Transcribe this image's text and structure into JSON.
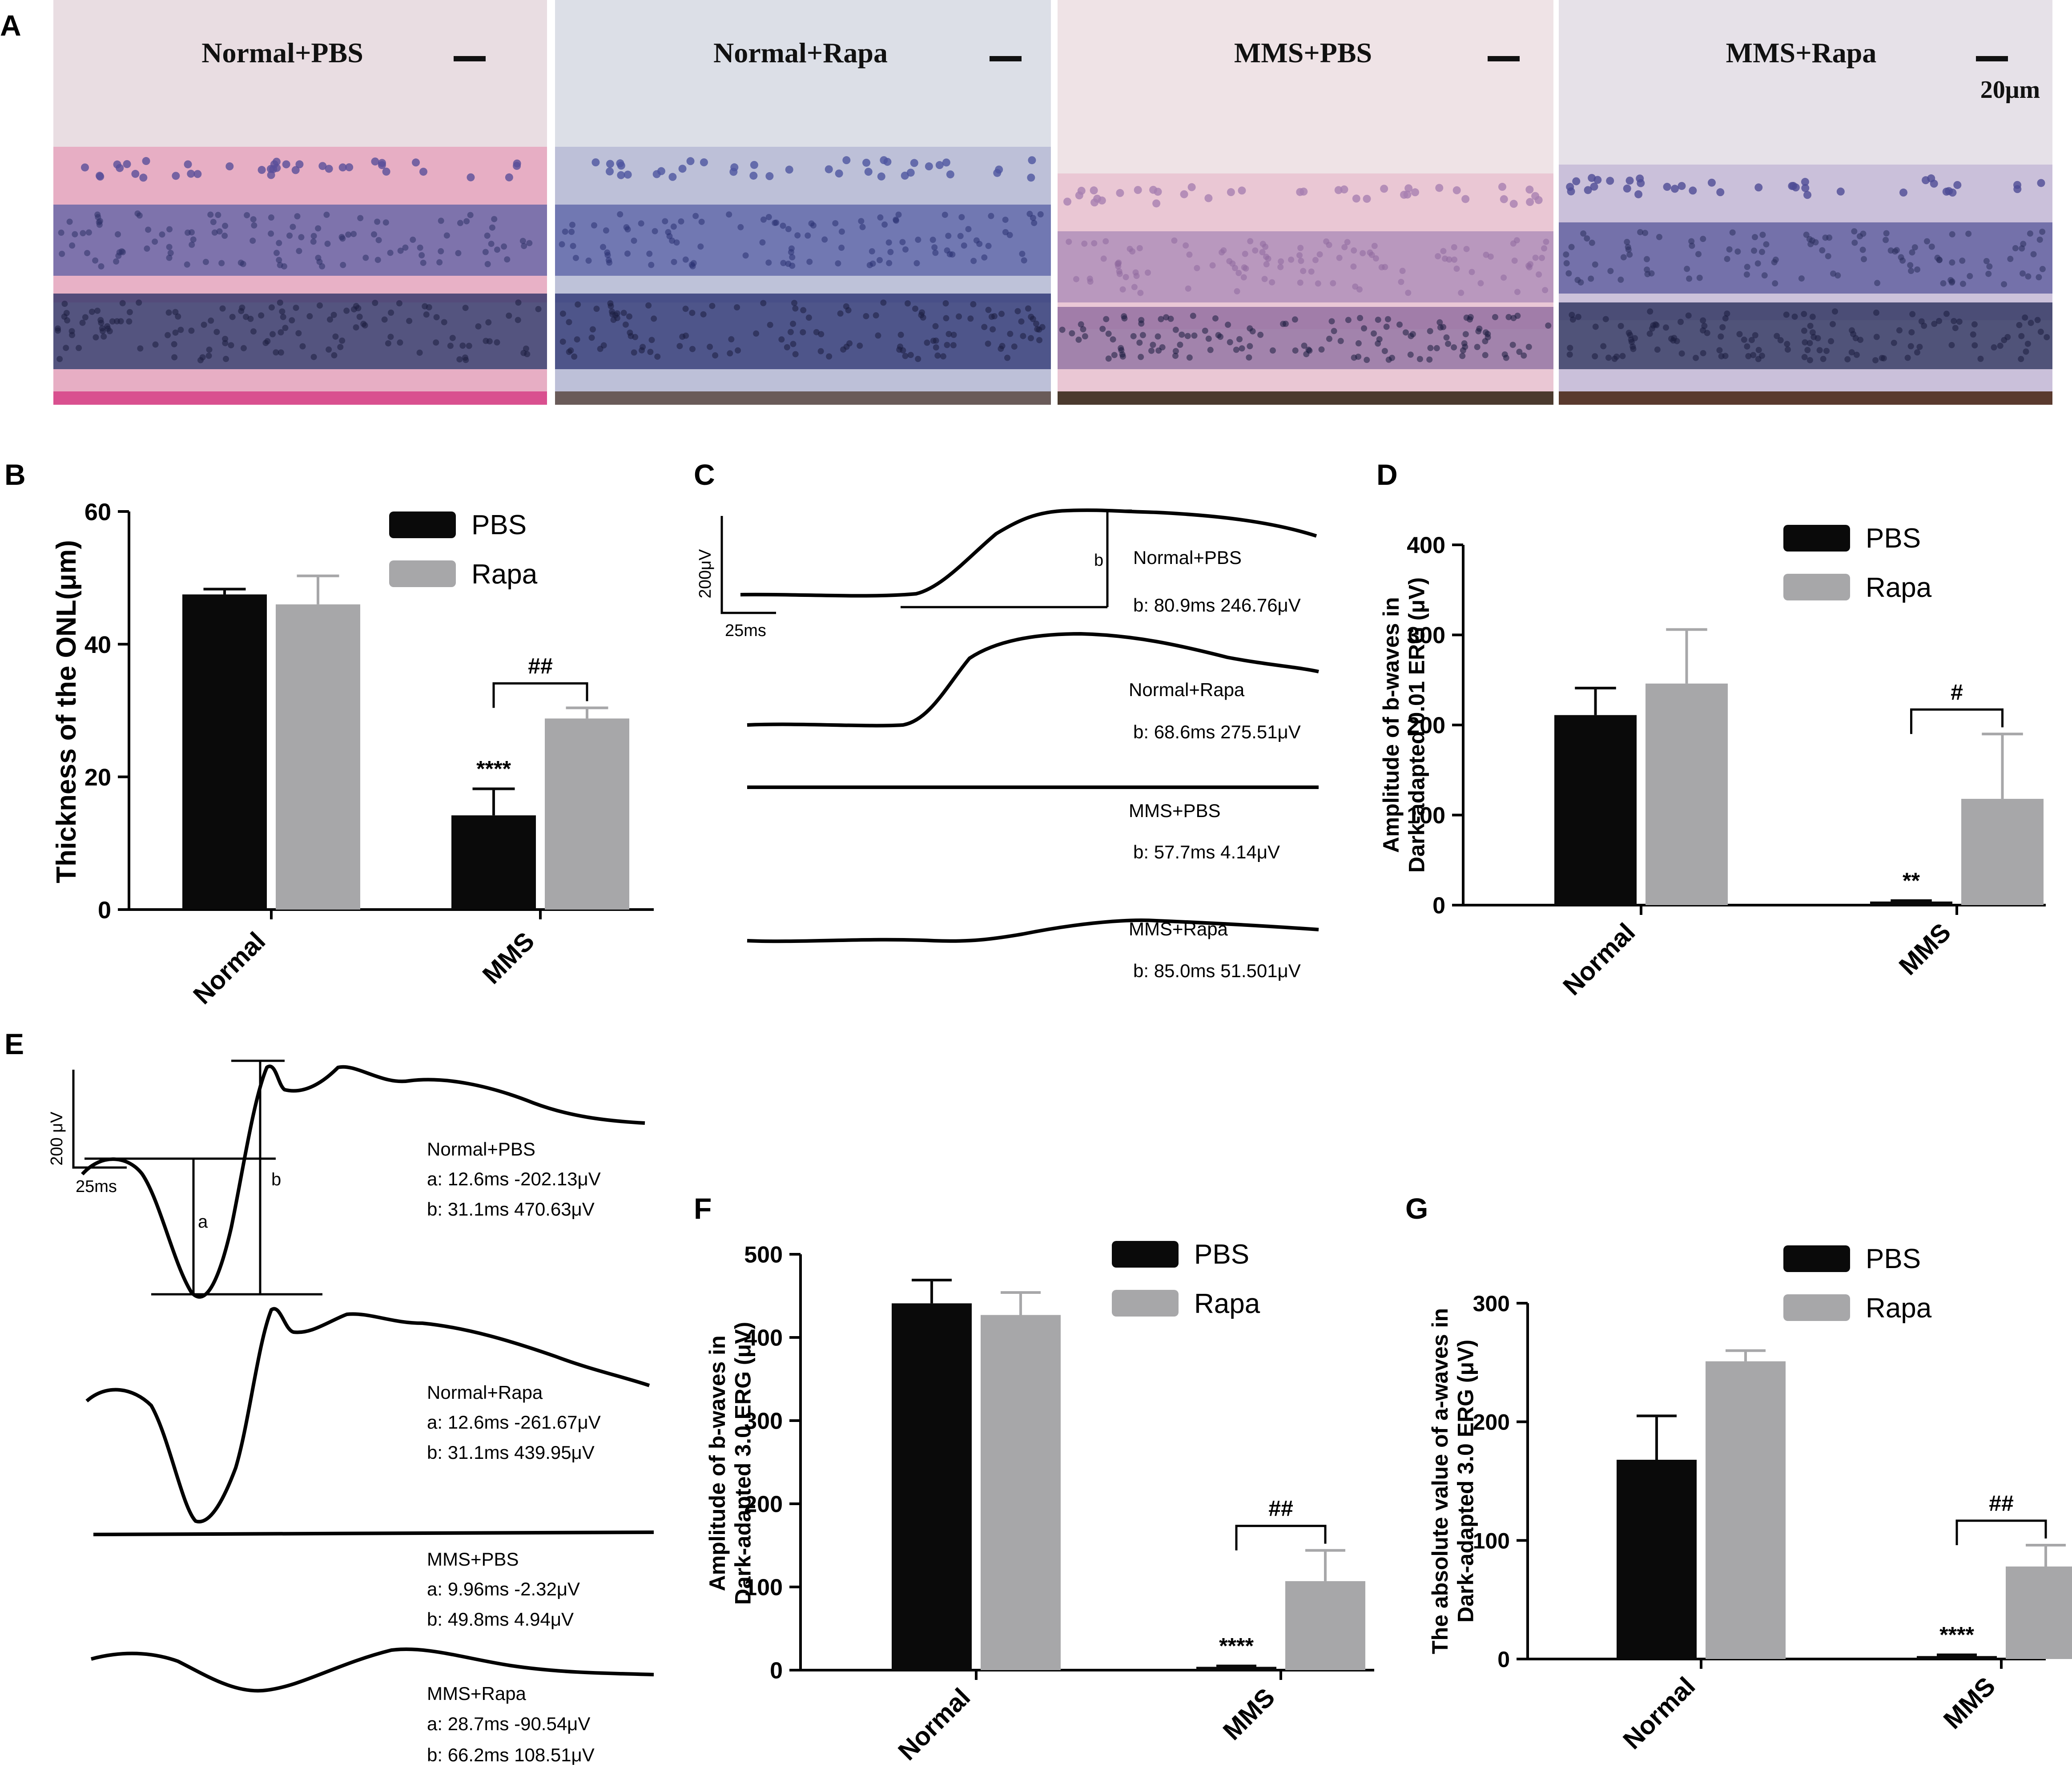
{
  "panel_letters": [
    "A",
    "B",
    "C",
    "D",
    "E",
    "F",
    "G"
  ],
  "micrographs": {
    "titles": [
      "Normal+PBS",
      "Normal+Rapa",
      "MMS+PBS",
      "MMS+Rapa"
    ],
    "scale_bar_label": "20μm",
    "tints": [
      {
        "bg": "#e9dde2",
        "pink": "#e7a9c1",
        "nuc": "#5a4f9a",
        "dark": "#2e3267",
        "base": "#d9508f"
      },
      {
        "bg": "#dcdfe7",
        "pink": "#b9bdd6",
        "nuc": "#4e55a0",
        "dark": "#2a3273",
        "base": "#6a5b59"
      },
      {
        "bg": "#efe3e6",
        "pink": "#e9c3d2",
        "nuc": "#a77fb0",
        "dark": "#8f6a9e",
        "base": "#4b3a2e"
      },
      {
        "bg": "#e6e1e8",
        "pink": "#c7bcd8",
        "nuc": "#4e4b95",
        "dark": "#2b2f5c",
        "base": "#5a3a2e"
      }
    ]
  },
  "legend": {
    "pbs": "PBS",
    "rapa": "Rapa"
  },
  "colors": {
    "pbs": "#0a0a0a",
    "rapa": "#a7a7a9"
  },
  "chart_data": [
    {
      "panel": "B",
      "type": "bar",
      "categories": [
        "Normal",
        "MMS"
      ],
      "series": [
        {
          "name": "PBS",
          "values": [
            47.5,
            14.2
          ],
          "errors": [
            0.8,
            4.0
          ]
        },
        {
          "name": "Rapa",
          "values": [
            46.0,
            28.8
          ],
          "errors": [
            4.3,
            1.6
          ]
        }
      ],
      "ylabel": "Thickness of the ONL(μm)",
      "ylim": [
        0,
        60
      ],
      "yticks": [
        0,
        20,
        40,
        60
      ],
      "sig_stars": [
        "",
        "****"
      ],
      "sig_bracket": "##",
      "legend_position": "top-right"
    },
    {
      "panel": "D",
      "type": "bar",
      "categories": [
        "Normal",
        "MMS"
      ],
      "series": [
        {
          "name": "PBS",
          "values": [
            211,
            4
          ],
          "errors": [
            30,
            1
          ]
        },
        {
          "name": "Rapa",
          "values": [
            246,
            118
          ],
          "errors": [
            60,
            72
          ]
        }
      ],
      "ylabel": [
        "Amplitude of b-waves in",
        "Dark-adapted 0.01 ERG (μV)"
      ],
      "ylim": [
        0,
        400
      ],
      "yticks": [
        0,
        100,
        200,
        300,
        400
      ],
      "sig_stars": [
        "",
        "**"
      ],
      "sig_bracket": "#",
      "legend_position": "top-right"
    },
    {
      "panel": "F",
      "type": "bar",
      "categories": [
        "Normal",
        "MMS"
      ],
      "series": [
        {
          "name": "PBS",
          "values": [
            441,
            4
          ],
          "errors": [
            28,
            1
          ]
        },
        {
          "name": "Rapa",
          "values": [
            427,
            107
          ],
          "errors": [
            27,
            37
          ]
        }
      ],
      "ylabel": [
        "Amplitude of b-waves in",
        "Dark-adapted 3.0 ERG (μV)"
      ],
      "ylim": [
        0,
        500
      ],
      "yticks": [
        0,
        100,
        200,
        300,
        400,
        500
      ],
      "sig_stars": [
        "",
        "****"
      ],
      "sig_bracket": "##",
      "legend_position": "top-right"
    },
    {
      "panel": "G",
      "type": "bar",
      "categories": [
        "Normal",
        "MMS"
      ],
      "series": [
        {
          "name": "PBS",
          "values": [
            168,
            2.5
          ],
          "errors": [
            37,
            1
          ]
        },
        {
          "name": "Rapa",
          "values": [
            251,
            78
          ],
          "errors": [
            9,
            18
          ]
        }
      ],
      "ylabel": [
        "The absolute value of a-waves in",
        "Dark-adapted 3.0 ERG (μV)"
      ],
      "ylim": [
        0,
        300
      ],
      "yticks": [
        0,
        100,
        200,
        300
      ],
      "sig_stars": [
        "",
        "****"
      ],
      "sig_bracket": "##",
      "legend_position": "top-right"
    },
    {
      "panel": "C",
      "type": "line",
      "scale_bar": {
        "amplitude": "200μV",
        "time": "25ms"
      },
      "b_marker": "b",
      "traces": [
        {
          "name": "Normal+PBS",
          "lines": [
            "Normal+PBS",
            "b:  80.9ms  246.76μV"
          ]
        },
        {
          "name": "Normal+Rapa",
          "lines": [
            "Normal+Rapa",
            "b:  68.6ms  275.51μV"
          ]
        },
        {
          "name": "MMS+PBS",
          "lines": [
            "MMS+PBS",
            "b:  57.7ms  4.14μV"
          ]
        },
        {
          "name": "MMS+Rapa",
          "lines": [
            "MMS+Rapa",
            "b:  85.0ms  51.501μV"
          ]
        }
      ]
    },
    {
      "panel": "E",
      "type": "line",
      "scale_bar": {
        "amplitude": "200 μV",
        "time": "25ms"
      },
      "a_marker": "a",
      "b_marker": "b",
      "traces": [
        {
          "name": "Normal+PBS",
          "lines": [
            "Normal+PBS",
            "a:  12.6ms  -202.13μV",
            "b:  31.1ms  470.63μV"
          ]
        },
        {
          "name": "Normal+Rapa",
          "lines": [
            "Normal+Rapa",
            "a:  12.6ms  -261.67μV",
            "b:  31.1ms  439.95μV"
          ]
        },
        {
          "name": "MMS+PBS",
          "lines": [
            "MMS+PBS",
            "a:  9.96ms  -2.32μV",
            "b:  49.8ms  4.94μV"
          ]
        },
        {
          "name": "MMS+Rapa",
          "lines": [
            "MMS+Rapa",
            "a:  28.7ms  -90.54μV",
            "b:  66.2ms  108.51μV"
          ]
        }
      ]
    }
  ]
}
